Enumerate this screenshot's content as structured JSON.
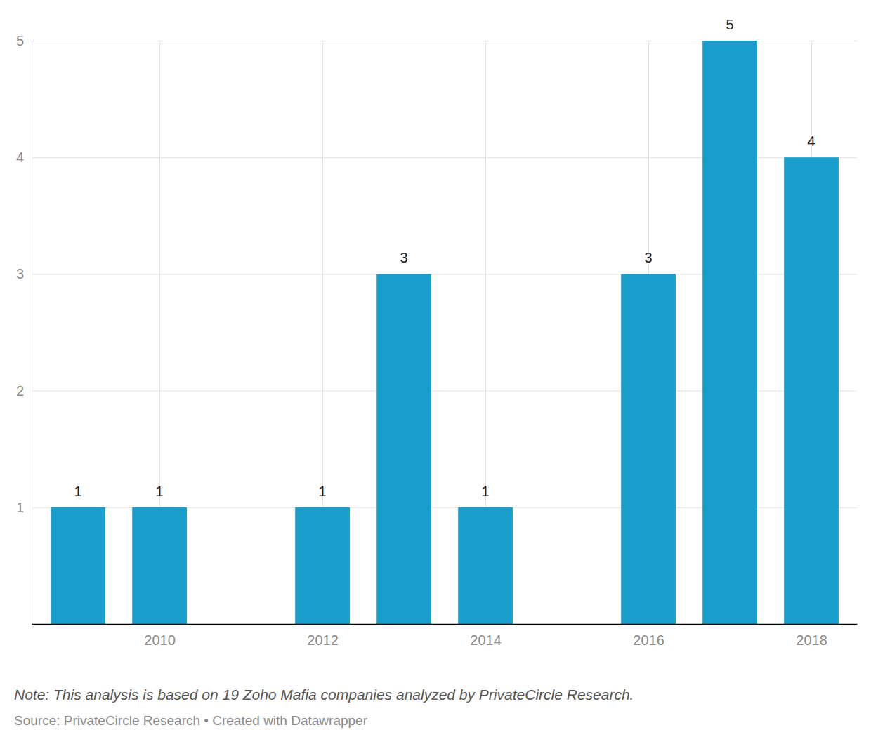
{
  "chart_data": {
    "type": "bar",
    "x": [
      2009,
      2010,
      2012,
      2013,
      2014,
      2016,
      2017,
      2018
    ],
    "values": [
      1,
      1,
      1,
      3,
      1,
      3,
      5,
      4
    ],
    "color": "#1a9fcc",
    "xlim": [
      2008.43,
      2018.56
    ],
    "xticks": [
      2010,
      2012,
      2014,
      2016,
      2018
    ],
    "ylim": [
      0,
      5
    ],
    "yticks": [
      1,
      2,
      3,
      4,
      5
    ],
    "grid": true,
    "data_labels": true,
    "note": "Note: This analysis is based on 19 Zoho Mafia companies analyzed by PrivateCircle Research.",
    "source": "Source: PrivateCircle Research • Created with Datawrapper"
  }
}
